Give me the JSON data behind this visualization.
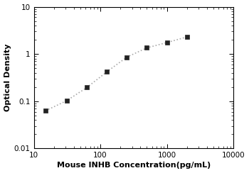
{
  "x_data": [
    15,
    31.25,
    62.5,
    125,
    250,
    500,
    1000,
    2000
  ],
  "y_data": [
    0.063,
    0.103,
    0.195,
    0.42,
    0.86,
    1.35,
    1.75,
    2.3
  ],
  "xlabel": "Mouse INHB Concentration(pg/mL)",
  "ylabel": "Optical Density",
  "xlim": [
    10,
    10000
  ],
  "ylim": [
    0.01,
    10
  ],
  "marker": "s",
  "marker_color": "#222222",
  "marker_size": 4.5,
  "line_color": "#aaaaaa",
  "line_style": ":",
  "line_width": 1.2,
  "background_color": "#ffffff",
  "xticks": [
    10,
    100,
    1000,
    10000
  ],
  "yticks": [
    0.01,
    0.1,
    1,
    10
  ],
  "xlabel_fontsize": 8,
  "ylabel_fontsize": 8,
  "tick_labelsize": 7.5
}
